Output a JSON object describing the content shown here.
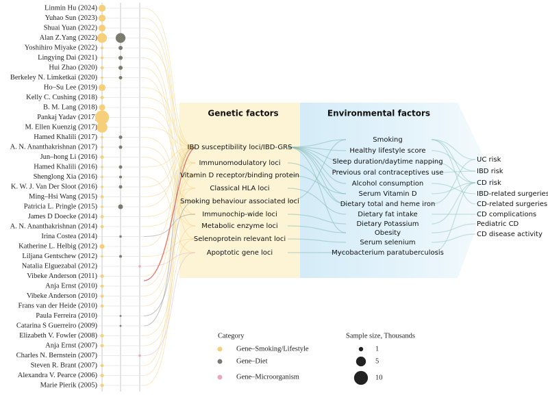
{
  "categories": [
    {
      "name": "Gene–Smoking/Lifestyle",
      "color": "#f5cf7a"
    },
    {
      "name": "Gene–Diet",
      "color": "#7b7b70"
    },
    {
      "name": "Gene–Microorganism",
      "color": "#e9a6c2"
    }
  ],
  "studies": [
    {
      "label": "Linmin Hu (2024)",
      "sizes": [
        2.5,
        null,
        null
      ]
    },
    {
      "label": "Yuhao Sun (2023)",
      "sizes": [
        2.5,
        null,
        null
      ]
    },
    {
      "label": "Shuai Yuan (2022)",
      "sizes": [
        2.5,
        null,
        null
      ]
    },
    {
      "label": "Alan Z.Yang (2022)",
      "sizes": [
        5,
        5,
        null
      ]
    },
    {
      "label": "Yoshihiro Miyake (2022)",
      "sizes": [
        0.4,
        0.9,
        null
      ]
    },
    {
      "label": "Lingying Dai (2021)",
      "sizes": [
        0.4,
        0.9,
        null
      ]
    },
    {
      "label": "Hui Zhao (2020)",
      "sizes": [
        0.5,
        0.9,
        null
      ]
    },
    {
      "label": "Berkeley N. Limketkai (2020)",
      "sizes": [
        0.3,
        0.6,
        null
      ]
    },
    {
      "label": "Ho–Su Lee (2019)",
      "sizes": [
        2.5,
        null,
        null
      ]
    },
    {
      "label": "Kelly C. Cushing (2018)",
      "sizes": [
        0.6,
        null,
        null
      ]
    },
    {
      "label": "B. M. Lang (2018)",
      "sizes": [
        2,
        null,
        null
      ]
    },
    {
      "label": "Pankaj Yadav (2017)",
      "sizes": [
        10,
        null,
        null
      ]
    },
    {
      "label": "M. Ellen Kuenzig (2017)",
      "sizes": [
        6,
        null,
        null
      ]
    },
    {
      "label": "Hamed Khalili (2017)",
      "sizes": [
        0.3,
        0.6,
        null
      ]
    },
    {
      "label": "A. N. Ananthakrishnan (2017)",
      "sizes": [
        0.3,
        0.6,
        null
      ]
    },
    {
      "label": "Jun–hong Li (2016)",
      "sizes": [
        0.6,
        null,
        null
      ]
    },
    {
      "label": "Hamed Khalili (2016)",
      "sizes": [
        0.3,
        0.6,
        null
      ]
    },
    {
      "label": "Shenglong Xia (2016)",
      "sizes": [
        0.3,
        0.4,
        null
      ]
    },
    {
      "label": "K. W. J. Van Der Sloot (2016)",
      "sizes": [
        0.3,
        0.6,
        null
      ]
    },
    {
      "label": "Ming–Hsi Wang (2015)",
      "sizes": [
        0.5,
        null,
        null
      ]
    },
    {
      "label": "Patricia L. Pringle (2015)",
      "sizes": [
        0.3,
        1.2,
        null
      ]
    },
    {
      "label": "James D Doecke (2014)",
      "sizes": [
        0.5,
        null,
        null
      ]
    },
    {
      "label": "A. N. Ananthakrishnan (2014)",
      "sizes": [
        0.5,
        null,
        null
      ]
    },
    {
      "label": "Irina Costea (2014)",
      "sizes": [
        null,
        0.3,
        null
      ]
    },
    {
      "label": "Katherine L. Helbig (2012)",
      "sizes": [
        1.2,
        null,
        null
      ]
    },
    {
      "label": "Liljana Gentschew (2012)",
      "sizes": [
        0.3,
        0.4,
        null
      ]
    },
    {
      "label": "Natalia Elguezabal (2012)",
      "sizes": [
        null,
        null,
        0.3
      ]
    },
    {
      "label": "Vibeke Anderson (2011)",
      "sizes": [
        0.6,
        null,
        null
      ]
    },
    {
      "label": "Anja Ernst  (2010)",
      "sizes": [
        0.5,
        null,
        null
      ]
    },
    {
      "label": "Vibeke Anderson (2010)",
      "sizes": [
        0.5,
        null,
        null
      ]
    },
    {
      "label": "Frans van der Heide (2010)",
      "sizes": [
        0.5,
        null,
        null
      ]
    },
    {
      "label": "Paula Ferreira (2010)",
      "sizes": [
        null,
        0.2,
        null
      ]
    },
    {
      "label": "Catarina S Guerreiro (2009)",
      "sizes": [
        null,
        0.2,
        null
      ]
    },
    {
      "label": "Elizabeth V. Fowler (2008)",
      "sizes": [
        0.6,
        null,
        null
      ]
    },
    {
      "label": "Anja Ernst (2007)",
      "sizes": [
        0.6,
        null,
        null
      ]
    },
    {
      "label": "Charles N. Bernstein (2007)",
      "sizes": [
        null,
        null,
        0.3
      ]
    },
    {
      "label": "Steven R. Brant (2007)",
      "sizes": [
        0.5,
        null,
        null
      ]
    },
    {
      "label": "Alexandra V. Pearce (2006)",
      "sizes": [
        0.6,
        null,
        null
      ]
    },
    {
      "label": "Marie Pierik (2005)",
      "sizes": [
        0.6,
        null,
        null
      ]
    }
  ],
  "genetic_factors": {
    "title": "Genetic factors",
    "items": [
      "IBD susceptibility loci/IBD-GRS",
      "Immunomodulatory loci",
      "Vitamin D receptor/binding protein",
      "Classical HLA loci",
      "Smoking behaviour associated loci",
      "Immunochip-wide loci",
      "Metabolic enzyme loci",
      "Selenoprotein relevant loci",
      "Apoptotic gene loci"
    ]
  },
  "environmental_factors": {
    "title": "Environmental factors",
    "items": [
      "Smoking",
      "Healthy lifestyle score",
      "Sleep duration/daytime napping",
      "Previous oral contraceptives use",
      "Alcohol consumption",
      "Serum Vitamin D",
      "Dietary total and heme iron",
      "Dietary fat intake",
      "Dietary Potassium",
      "Obesity",
      "Serum selenium",
      "Mycobacterium paratuberculosis"
    ]
  },
  "outcomes": [
    "UC risk",
    "IBD risk",
    "CD risk",
    "IBD-related surgeries",
    "CD-related surgeries",
    "CD complications",
    "Pediatric CD",
    "CD disease activity"
  ],
  "legend": {
    "category_title": "Category",
    "size_title": "Sample size, Thousands",
    "size_keys": [
      1,
      5,
      10
    ]
  }
}
